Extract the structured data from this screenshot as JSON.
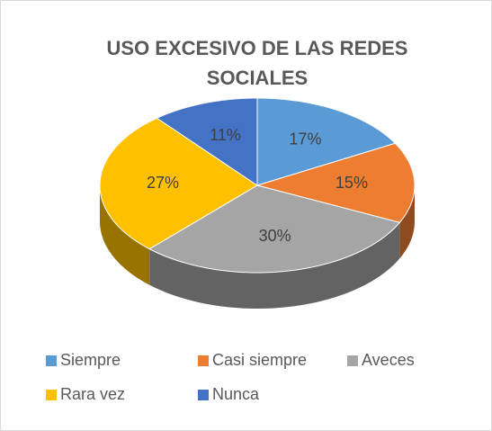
{
  "chart_data": {
    "type": "pie",
    "title": "USO EXCESIVO DE LAS REDES SOCIALES",
    "categories": [
      "Siempre",
      "Casi siempre",
      "Aveces",
      "Rara vez",
      "Nunca"
    ],
    "values": [
      17,
      15,
      30,
      27,
      11
    ],
    "value_labels": [
      "17%",
      "15%",
      "30%",
      "27%",
      "11%"
    ],
    "colors": [
      "#5b9bd5",
      "#ed7d31",
      "#a5a5a5",
      "#ffc000",
      "#4472c4"
    ],
    "legend": "bottom"
  }
}
